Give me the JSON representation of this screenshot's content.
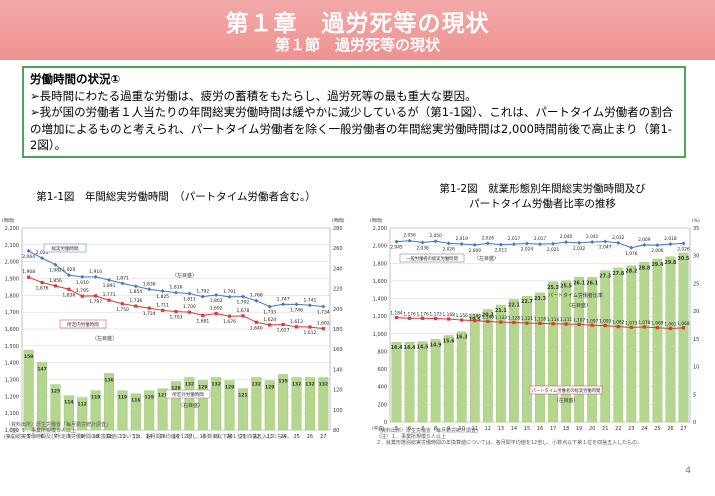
{
  "banner": {
    "chapter": "第１章　過労死等の現状",
    "section": "第１節　過労死等の現状"
  },
  "summary": {
    "heading": "労働時間の状況①",
    "bullets": [
      "➢長時間にわたる過重な労働は、疲労の蓄積をもたらし、過労死等の最も重大な要因。",
      "➢我が国の労働者１人当たりの年間総実労働時間は緩やかに減少しているが（第1-1図）、これは、パートタイム労働者の割合の増加によるものと考えられ、パートタイム労働者を除く一般労働者の年間総実労働時間は2,000時間前後で高止まり（第1-2図）。"
    ]
  },
  "page_number": "4",
  "chart_data": [
    {
      "id": "fig-1-1",
      "type": "bar",
      "title": "第1-1図　年間総実労働時間　（パートタイム労働者含む。）",
      "left_axis_unit": "(時間)",
      "right_axis_unit": "(時間)",
      "x_unit": "(平成)",
      "categories": [
        "5",
        "6",
        "7",
        "8",
        "9",
        "10",
        "11",
        "12",
        "13",
        "14",
        "15",
        "16",
        "17",
        "18",
        "19",
        "20",
        "21",
        "22",
        "23",
        "24",
        "25",
        "26",
        "27"
      ],
      "ylim_left": [
        1000,
        2200
      ],
      "ylim_right": [
        80,
        280
      ],
      "left_ticks": [
        "2,200",
        "2,100",
        "2,000",
        "1,900",
        "1,800",
        "1,700",
        "1,600",
        "1,500",
        "1,400",
        "1,300",
        "1,200",
        "1,100",
        "1,000"
      ],
      "right_ticks": [
        "280",
        "260",
        "240",
        "220",
        "200",
        "180",
        "160",
        "140",
        "120",
        "100",
        "80"
      ],
      "bars": {
        "name": "所定外労働時間（右目盛）",
        "values": [
          159,
          147,
          125,
          114,
          112,
          119,
          136,
          119,
          116,
          119,
          121,
          128,
          132,
          129,
          132,
          129,
          121,
          132,
          129,
          135,
          132,
          132,
          132
        ]
      },
      "series": [
        {
          "name": "総実労働時間",
          "axis": "left",
          "values": [
            2064,
            2021,
            1982,
            1920,
            1910,
            1910,
            1891,
            1871,
            1854,
            1836,
            1825,
            1816,
            1811,
            1792,
            1802,
            1791,
            1792,
            1768,
            1733,
            1747,
            1746,
            1741,
            1734
          ]
        },
        {
          "name": "所定内労働時間",
          "axis": "left",
          "values": [
            1908,
            1876,
            1856,
            1836,
            1795,
            1797,
            1771,
            1750,
            1736,
            1724,
            1711,
            1703,
            1700,
            1681,
            1692,
            1676,
            1678,
            1640,
            1624,
            1627,
            1613,
            1612,
            1602
          ]
        }
      ],
      "labels": {
        "total": "総実労働時間",
        "scheduled": "所定内労働時間",
        "left_note": "（左目盛）",
        "overtime": "所定外労働時間",
        "right_note": "（右目盛）"
      },
      "notes": [
        "（資料出所）厚生労働省「毎月勤労統計調査」",
        "（注）１．事業所規模５人以上",
        "２．総実労働時間及び所定内労働時間の年換算値については、各月間平均値を12倍し、小数点以下第１位を四捨五入したもの。"
      ]
    },
    {
      "id": "fig-1-2",
      "type": "bar",
      "title_line1": "第1-2図　就業形態別年間総実労働時間及び",
      "title_line2": "パートタイム労働者比率の推移",
      "left_axis_unit": "(時間)",
      "right_axis_unit": "(%)",
      "x_unit": "(平成)",
      "categories": [
        "5",
        "6",
        "7",
        "8",
        "9",
        "10",
        "11",
        "12",
        "13",
        "14",
        "15",
        "16",
        "17",
        "18",
        "19",
        "20",
        "21",
        "22",
        "23",
        "24",
        "25",
        "26",
        "27"
      ],
      "ylim_left": [
        0,
        2200
      ],
      "ylim_right": [
        0,
        35
      ],
      "left_ticks": [
        "2,200",
        "2,000",
        "1,800",
        "1,600",
        "1,400",
        "1,200",
        "1,000",
        "800",
        "600",
        "400",
        "200",
        "0"
      ],
      "right_ticks": [
        "35",
        "30",
        "25",
        "20",
        "15",
        "10",
        "5",
        "0"
      ],
      "bars": {
        "name": "パートタイム労働者比率（右目盛）",
        "values": [
          14.4,
          14.4,
          14.5,
          14.9,
          15.6,
          16.3,
          19.5,
          20.3,
          21.1,
          22.1,
          22.7,
          23.3,
          25.3,
          25.5,
          26.1,
          26.1,
          27.3,
          27.8,
          28.2,
          28.8,
          29.4,
          29.8,
          30.5
        ]
      },
      "series": [
        {
          "name": "一般労働者の総実労働時間",
          "axis": "left",
          "values": [
            2045,
            2056,
            2036,
            2050,
            2026,
            2019,
            2009,
            2026,
            2012,
            2017,
            2024,
            2017,
            2021,
            2040,
            2032,
            2041,
            2047,
            2032,
            1976,
            2009,
            2006,
            2018,
            2026
          ]
        },
        {
          "name": "パートタイム労働者の総実労働時間",
          "axis": "left",
          "values": [
            1184,
            1176,
            1176,
            1173,
            1168,
            1156,
            1149,
            1140,
            1133,
            1128,
            1121,
            1118,
            1114,
            1111,
            1107,
            1097,
            1093,
            1082,
            1073,
            1078,
            1069,
            1061,
            1068
          ]
        }
      ],
      "labels": {
        "general": "一般労働者の総実労働時間",
        "general_note": "（左目盛）",
        "ratio": "パートタイム労働者比率",
        "ratio_note": "（右目盛）",
        "part": "パートタイム労働者の総実労働時間",
        "part_note": "（左目盛）"
      },
      "notes": [
        "（資料出所）厚生労働省「毎月勤労統計調査」",
        "（注）１．事業所規模５人以上",
        "２．就業形態別総実労働時間の年換算値については、各月間平均値を12倍し、小数点以下第１位を四捨五入したもの。"
      ]
    }
  ]
}
